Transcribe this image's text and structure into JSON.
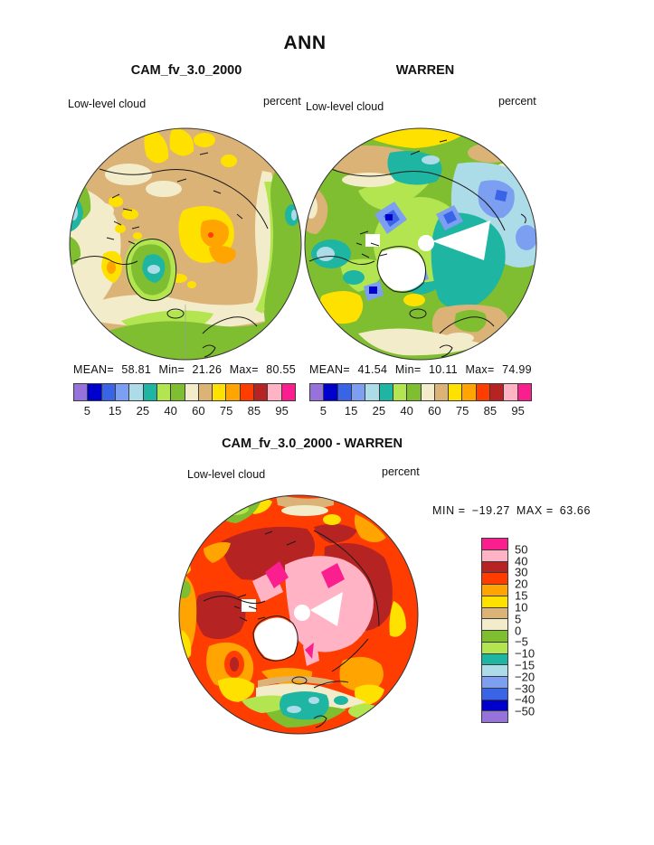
{
  "title": "ANN",
  "panels": {
    "cam": {
      "title": "CAM_fv_3.0_2000",
      "variable": "Low-level cloud",
      "units": "percent",
      "stats": {
        "mean_label": "MEAN=",
        "mean": "58.81",
        "min_label": "Min=",
        "min": "21.26",
        "max_label": "Max=",
        "max": "80.55"
      }
    },
    "warren": {
      "title": "WARREN",
      "variable": "Low-level cloud",
      "units": "percent",
      "stats": {
        "mean_label": "MEAN=",
        "mean": "41.54",
        "min_label": "Min=",
        "min": "10.11",
        "max_label": "Max=",
        "max": "74.99"
      }
    },
    "diff": {
      "title": "CAM_fv_3.0_2000 - WARREN",
      "variable": "Low-level cloud",
      "units": "percent",
      "stats": {
        "min_label": "MIN =",
        "min": "−19.27",
        "max_label": "MAX =",
        "max": "63.66"
      }
    }
  },
  "colorbar": {
    "tick_labels": [
      "5",
      "15",
      "25",
      "40",
      "60",
      "75",
      "85",
      "95"
    ],
    "colors": [
      "#9673DB",
      "#0000CD",
      "#3A64E6",
      "#7C9FF2",
      "#ACDCE7",
      "#1FB5A3",
      "#B3E551",
      "#7FBE30",
      "#F3ECCA",
      "#DBB377",
      "#FFE100",
      "#FFA400",
      "#FF3D00",
      "#B52423",
      "#FFB3C5",
      "#FB1E8E"
    ]
  },
  "diff_colorbar": {
    "tick_labels": [
      "50",
      "40",
      "30",
      "20",
      "15",
      "10",
      "5",
      "0",
      "−5",
      "−10",
      "−15",
      "−20",
      "−30",
      "−40",
      "−50"
    ],
    "colors": [
      "#FB1E8E",
      "#FFB3C5",
      "#B52423",
      "#FF3D00",
      "#FFA400",
      "#FFE100",
      "#DBB377",
      "#F3ECCA",
      "#7FBE30",
      "#B3E551",
      "#1FB5A3",
      "#ACDCE7",
      "#7C9FF2",
      "#3A64E6",
      "#0000CD",
      "#9673DB"
    ]
  },
  "palette": {
    "tan": "#DBB377",
    "cream": "#F3ECCA",
    "olive": "#7FBE30",
    "ygreen": "#B3E551",
    "teal": "#1FB5A3",
    "cyan": "#ACDCE7",
    "cornflower": "#7C9FF2",
    "royal": "#3A64E6",
    "navy": "#0000CD",
    "purple": "#9673DB",
    "yellow": "#FFE100",
    "orange": "#FFA400",
    "redorange": "#FF3D00",
    "brick": "#B52423",
    "pink": "#FFB3C5",
    "magenta": "#FB1E8E"
  },
  "chart_data": [
    {
      "type": "heatmap",
      "projection": "north-polar-stereographic",
      "title": "CAM_fv_3.0_2000",
      "variable": "Low-level cloud",
      "units": "percent",
      "season": "ANN",
      "stats": {
        "mean": 58.81,
        "min": 21.26,
        "max": 80.55
      },
      "contour_levels": [
        5,
        10,
        15,
        20,
        25,
        30,
        40,
        50,
        60,
        70,
        75,
        80,
        85,
        90,
        95
      ],
      "labeled_levels": [
        5,
        15,
        25,
        40,
        60,
        75,
        85,
        95
      ],
      "legend_position": "below"
    },
    {
      "type": "heatmap",
      "projection": "north-polar-stereographic",
      "title": "WARREN",
      "variable": "Low-level cloud",
      "units": "percent",
      "season": "ANN",
      "stats": {
        "mean": 41.54,
        "min": 10.11,
        "max": 74.99
      },
      "contour_levels": [
        5,
        10,
        15,
        20,
        25,
        30,
        40,
        50,
        60,
        70,
        75,
        80,
        85,
        90,
        95
      ],
      "labeled_levels": [
        5,
        15,
        25,
        40,
        60,
        75,
        85,
        95
      ],
      "legend_position": "below"
    },
    {
      "type": "heatmap",
      "projection": "north-polar-stereographic",
      "title": "CAM_fv_3.0_2000 - WARREN",
      "variable": "Low-level cloud",
      "units": "percent",
      "season": "ANN",
      "stats": {
        "min": -19.27,
        "max": 63.66
      },
      "contour_levels": [
        -50,
        -40,
        -30,
        -20,
        -15,
        -10,
        -5,
        0,
        5,
        10,
        15,
        20,
        30,
        40,
        50
      ],
      "legend_position": "right"
    }
  ]
}
